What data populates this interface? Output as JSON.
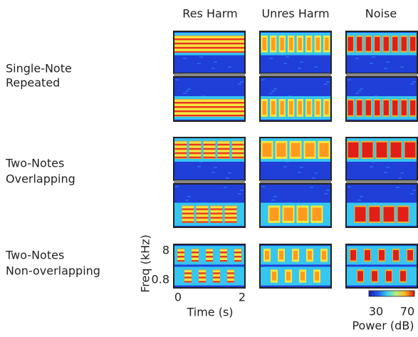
{
  "columns": [
    "Res Harm",
    "Unres Harm",
    "Noise"
  ],
  "rows": [
    {
      "lines": [
        "Single-Note",
        "Repeated"
      ]
    },
    {
      "lines": [
        "Two-Notes",
        "Overlapping"
      ]
    },
    {
      "lines": [
        "Two-Notes",
        "Non-overlapping"
      ]
    }
  ],
  "axes": {
    "y_label": "Freq (kHz)",
    "y_ticks": [
      "8",
      "0.8"
    ],
    "x_label": "Time (s)",
    "x_ticks": [
      "0",
      "2"
    ]
  },
  "colorbar": {
    "ticks": [
      "30",
      "70"
    ],
    "label": "Power (dB)"
  }
}
